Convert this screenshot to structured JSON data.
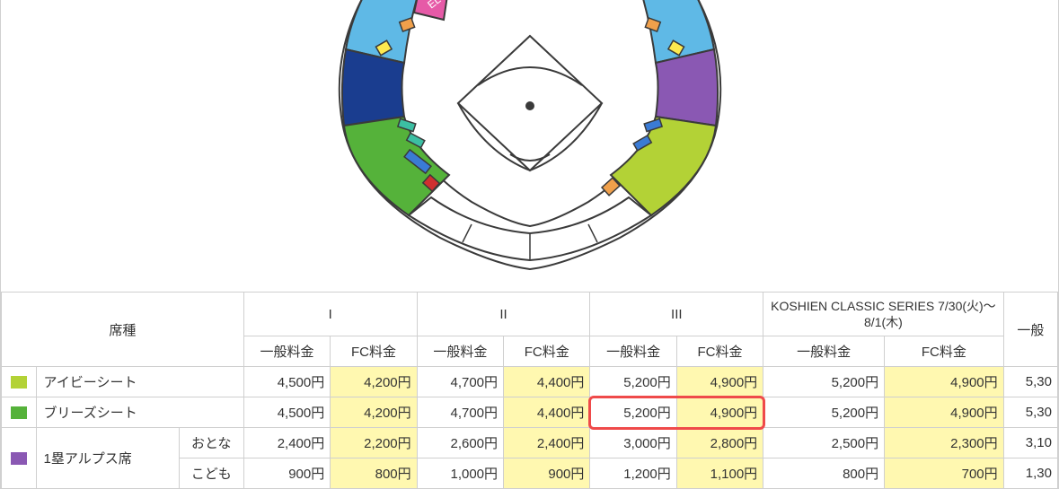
{
  "table": {
    "headers": {
      "seat_type": "席種",
      "group1": "I",
      "group2": "II",
      "group3": "III",
      "group_koshien": "KOSHIEN CLASSIC SERIES\n7/30(火)～8/1(木)",
      "general": "一般料金",
      "fc": "FC料金",
      "general_cut": "一般"
    },
    "col_widths": {
      "swatch": 32,
      "seat_name": 132,
      "subtype": 60,
      "price": 80,
      "koshien_general": 112,
      "koshien_fc": 110,
      "tail": 50
    },
    "rows": [
      {
        "swatch_color": "#b3d236",
        "name": "アイビーシート",
        "subtype": null,
        "prices_text": [
          "4,500円",
          "4,200円",
          "4,700円",
          "4,400円",
          "5,200円",
          "4,900円",
          "5,200円",
          "4,900円",
          "5,30"
        ]
      },
      {
        "swatch_color": "#55b23a",
        "name": "ブリーズシート",
        "subtype": null,
        "prices_text": [
          "4,500円",
          "4,200円",
          "4,700円",
          "4,400円",
          "5,200円",
          "4,900円",
          "5,200円",
          "4,900円",
          "5,30"
        ]
      },
      {
        "swatch_color": "#8a58b3",
        "name": "1塁アルプス席",
        "subtype": "おとな",
        "prices_text": [
          "2,400円",
          "2,200円",
          "2,600円",
          "2,400円",
          "3,000円",
          "2,800円",
          "2,500円",
          "2,300円",
          "3,10"
        ]
      },
      {
        "swatch_color": "#8a58b3",
        "name": "1塁アルプス席",
        "subtype": "こども",
        "prices_text": [
          "900円",
          "800円",
          "1,000円",
          "900円",
          "1,200円",
          "1,100円",
          "800円",
          "700円",
          "1,30"
        ]
      }
    ]
  },
  "stadium": {
    "outline_color": "#3a3a3a",
    "field_line_color": "#3a3a3a",
    "colors": {
      "sky": "#5fb9e6",
      "navy": "#1a3d8f",
      "pink": "#e65aa7",
      "lime": "#b3d236",
      "green": "#55b23a",
      "purple": "#8a58b3",
      "orange": "#f0a04b",
      "red": "#d03030",
      "teal": "#3cbfa3",
      "blue": "#3a7bd5"
    }
  },
  "highlight": {
    "border_color": "#ef4a4a",
    "row_index": 1,
    "col_left": "一般料金 III",
    "col_right": "FC料金 III"
  }
}
